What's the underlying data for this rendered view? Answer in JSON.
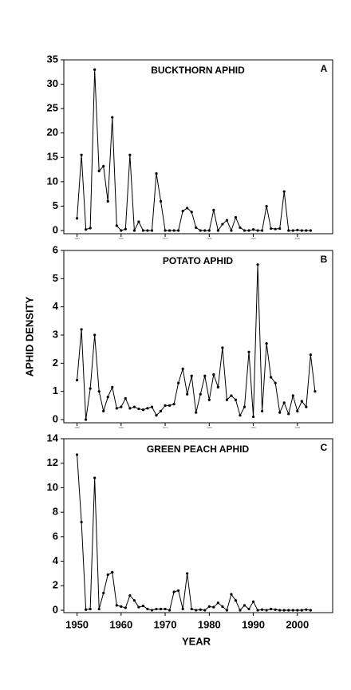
{
  "chart_data": [
    {
      "type": "line",
      "title": "BUCKTHORN APHID",
      "annotation": "A",
      "x": [
        1950,
        1951,
        1952,
        1953,
        1954,
        1955,
        1956,
        1957,
        1958,
        1959,
        1960,
        1961,
        1962,
        1963,
        1964,
        1965,
        1966,
        1967,
        1968,
        1969,
        1970,
        1971,
        1972,
        1973,
        1974,
        1975,
        1976,
        1977,
        1978,
        1979,
        1980,
        1981,
        1982,
        1983,
        1984,
        1985,
        1986,
        1987,
        1988,
        1989,
        1990,
        1991,
        1992,
        1993,
        1994,
        1995,
        1996,
        1997,
        1998,
        1999,
        2000,
        2001,
        2002,
        2003
      ],
      "values": [
        2.5,
        15.5,
        0.2,
        0.5,
        33,
        12.2,
        13.2,
        6,
        23.2,
        1,
        0,
        0.3,
        15.5,
        0,
        1.8,
        0,
        0,
        0,
        11.7,
        6,
        0,
        0,
        0,
        0,
        4,
        4.6,
        3.8,
        0.6,
        0,
        0,
        0,
        4.2,
        0,
        1.3,
        2.1,
        0,
        2.7,
        0.6,
        0,
        0,
        0.2,
        0,
        0,
        5,
        0.4,
        0.3,
        0.4,
        8,
        0,
        0,
        0.1,
        0,
        0,
        0
      ],
      "color": "#000000",
      "xlim": [
        1947,
        2008
      ],
      "xticks": [
        1950,
        1960,
        1970,
        1980,
        1990,
        2000
      ],
      "ylim": [
        0,
        35
      ],
      "yticks": [
        0,
        5,
        10,
        15,
        20,
        25,
        30,
        35
      ]
    },
    {
      "type": "line",
      "title": "POTATO APHID",
      "annotation": "B",
      "ylabel": "APHID DENSITY",
      "x": [
        1950,
        1951,
        1952,
        1953,
        1954,
        1955,
        1956,
        1957,
        1958,
        1959,
        1960,
        1961,
        1962,
        1963,
        1964,
        1965,
        1966,
        1967,
        1968,
        1969,
        1970,
        1971,
        1972,
        1973,
        1974,
        1975,
        1976,
        1977,
        1978,
        1979,
        1980,
        1981,
        1982,
        1983,
        1984,
        1985,
        1986,
        1987,
        1988,
        1989,
        1990,
        1991,
        1992,
        1993,
        1994,
        1995,
        1996,
        1997,
        1998,
        1999,
        2000,
        2001,
        2002,
        2003,
        2004
      ],
      "values": [
        1.4,
        3.2,
        0,
        1.1,
        3,
        1,
        0.3,
        0.8,
        1.15,
        0.4,
        0.45,
        0.75,
        0.4,
        0.45,
        0.38,
        0.35,
        0.4,
        0.45,
        0.15,
        0.3,
        0.5,
        0.5,
        0.55,
        1.3,
        1.8,
        0.9,
        1.55,
        0.25,
        0.9,
        1.55,
        0.7,
        1.6,
        1.15,
        2.55,
        0.7,
        0.85,
        0.7,
        0.15,
        0.45,
        2.4,
        0.1,
        5.5,
        0.3,
        2.7,
        1.5,
        1.3,
        0.25,
        0.6,
        0.2,
        0.85,
        0.3,
        0.65,
        0.45,
        2.3,
        1
      ],
      "color": "#000000",
      "xlim": [
        1947,
        2008
      ],
      "xticks": [
        1950,
        1960,
        1970,
        1980,
        1990,
        2000
      ],
      "ylim": [
        0,
        6
      ],
      "yticks": [
        0,
        1,
        2,
        3,
        4,
        5,
        6
      ]
    },
    {
      "type": "line",
      "title": "GREEN PEACH APHID",
      "annotation": "C",
      "xlabel": "YEAR",
      "x": [
        1950,
        1951,
        1952,
        1953,
        1954,
        1955,
        1956,
        1957,
        1958,
        1959,
        1960,
        1961,
        1962,
        1963,
        1964,
        1965,
        1966,
        1967,
        1968,
        1969,
        1970,
        1971,
        1972,
        1973,
        1974,
        1975,
        1976,
        1977,
        1978,
        1979,
        1980,
        1981,
        1982,
        1983,
        1984,
        1985,
        1986,
        1987,
        1988,
        1989,
        1990,
        1991,
        1992,
        1993,
        1994,
        1995,
        1996,
        1997,
        1998,
        1999,
        2000,
        2001,
        2002,
        2003
      ],
      "values": [
        12.7,
        7.2,
        0.05,
        0.1,
        10.8,
        0.1,
        1.4,
        2.9,
        3.1,
        0.4,
        0.3,
        0.2,
        1.2,
        0.8,
        0.25,
        0.35,
        0.1,
        0,
        0.1,
        0.1,
        0.1,
        0,
        1.5,
        1.6,
        0.1,
        3,
        0.1,
        0,
        0.05,
        0,
        0.3,
        0.25,
        0.6,
        0.3,
        0,
        1.3,
        0.8,
        0,
        0.4,
        0.1,
        0.7,
        0,
        0.05,
        0,
        0.1,
        0.05,
        0,
        0,
        0,
        0,
        0,
        0,
        0.05,
        0
      ],
      "color": "#000000",
      "xlim": [
        1947,
        2008
      ],
      "xticks": [
        1950,
        1960,
        1970,
        1980,
        1990,
        2000
      ],
      "ylim": [
        0,
        14
      ],
      "yticks": [
        0,
        2,
        4,
        6,
        8,
        10,
        12,
        14
      ]
    }
  ]
}
